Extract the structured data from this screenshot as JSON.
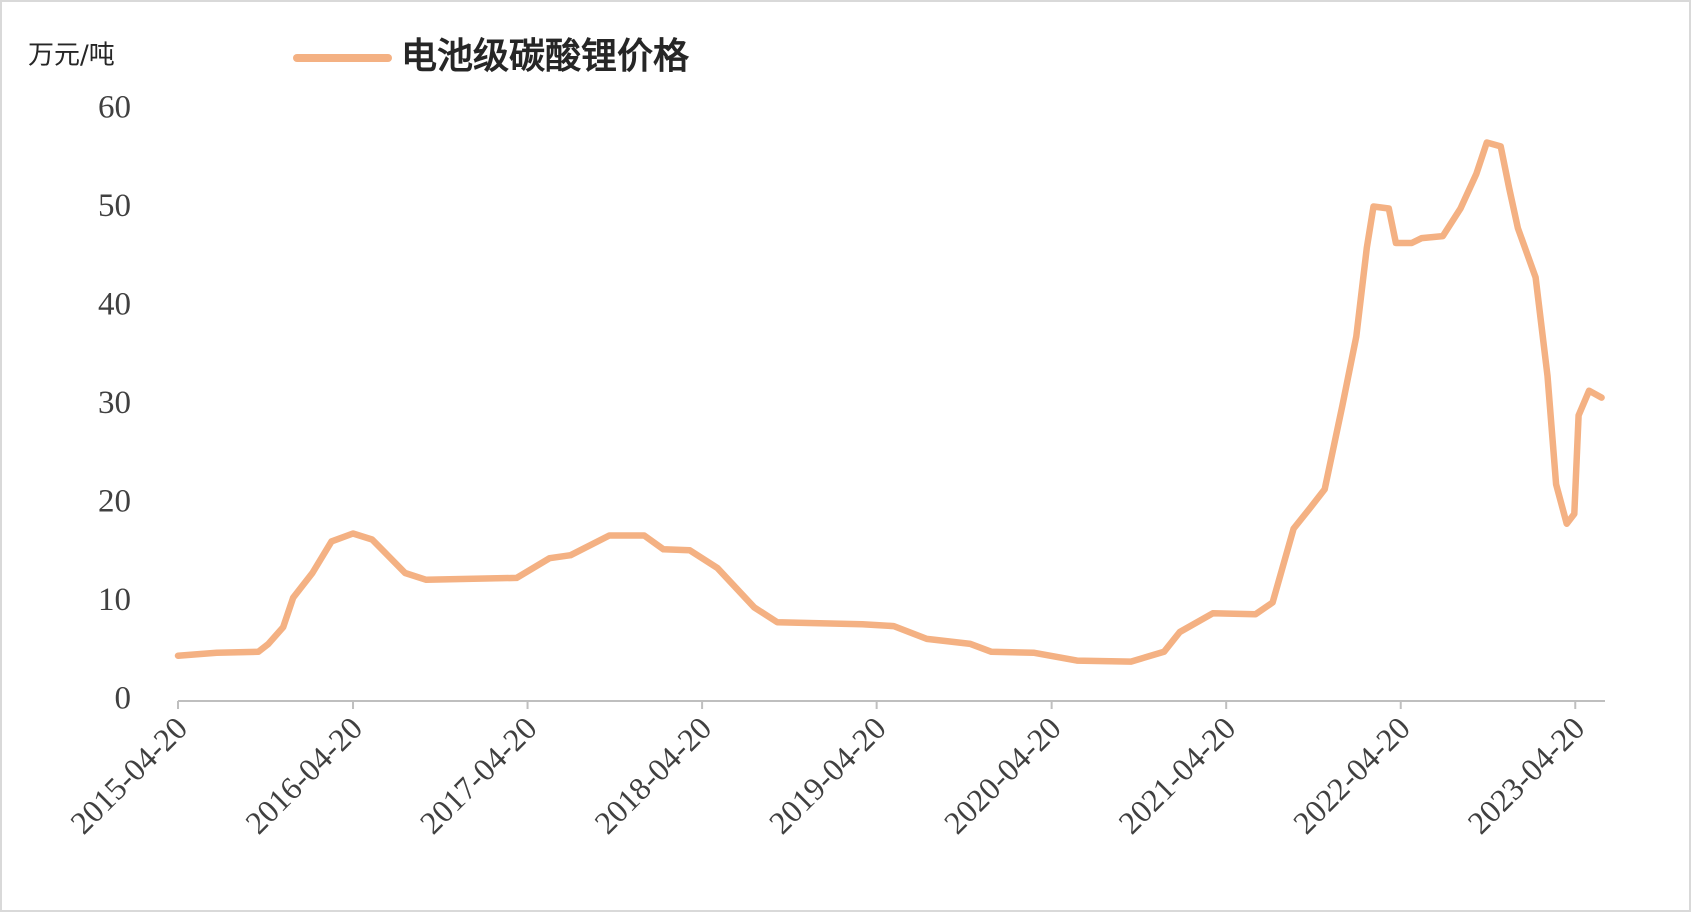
{
  "chart_data": {
    "type": "line",
    "y_label": "万元/吨",
    "x": [
      "2015-04-20",
      "2015-07-10",
      "2015-10-05",
      "2015-10-26",
      "2015-11-26",
      "2015-12-17",
      "2016-01-26",
      "2016-03-06",
      "2016-04-20",
      "2016-05-30",
      "2016-08-07",
      "2016-09-20",
      "2017-03-28",
      "2017-06-05",
      "2017-07-19",
      "2017-10-08",
      "2017-12-20",
      "2018-01-29",
      "2018-03-25",
      "2018-05-22",
      "2018-08-07",
      "2018-09-24",
      "2019-03-21",
      "2019-05-26",
      "2019-08-03",
      "2019-11-02",
      "2019-12-16",
      "2020-03-13",
      "2020-06-12",
      "2020-10-03",
      "2020-12-11",
      "2021-01-13",
      "2021-03-23",
      "2021-06-20",
      "2021-07-26",
      "2021-09-08",
      "2021-10-11",
      "2021-11-12",
      "2021-12-19",
      "2022-01-17",
      "2022-02-08",
      "2022-02-22",
      "2022-03-26",
      "2022-04-10",
      "2022-05-13",
      "2022-06-03",
      "2022-07-17",
      "2022-08-23",
      "2022-09-25",
      "2022-10-17",
      "2022-11-15",
      "2022-12-03",
      "2022-12-21",
      "2023-01-27",
      "2023-02-21",
      "2023-03-11",
      "2023-04-02",
      "2023-04-18",
      "2023-04-27",
      "2023-05-19",
      "2023-06-14"
    ],
    "series": [
      {
        "name": "电池级碳酸锂价格",
        "color": "#f4b183",
        "values": [
          4.6,
          4.9,
          5.0,
          5.8,
          7.5,
          10.5,
          13,
          16.2,
          17.0,
          16.4,
          13,
          12.3,
          12.5,
          14.5,
          14.8,
          16.8,
          16.8,
          15.4,
          15.3,
          13.5,
          9.5,
          8.0,
          7.8,
          7.6,
          6.3,
          5.8,
          5.0,
          4.9,
          4.1,
          4.0,
          5.0,
          7.0,
          8.9,
          8.8,
          10,
          17.5,
          19.5,
          21.5,
          30,
          37,
          46,
          50.2,
          50,
          46.5,
          46.5,
          47,
          47.2,
          50,
          53.5,
          56.7,
          56.3,
          52,
          48,
          43,
          33,
          22,
          18,
          19,
          29,
          31.5,
          30.8
        ]
      }
    ],
    "xlim": [
      "2015-04-20",
      "2023-06-17"
    ],
    "xticks": [
      "2015-04-20",
      "2016-04-20",
      "2017-04-20",
      "2018-04-20",
      "2019-04-20",
      "2020-04-20",
      "2021-04-20",
      "2022-04-20",
      "2023-04-20"
    ],
    "ylim": [
      0,
      60
    ],
    "yticks": [
      0,
      10,
      20,
      30,
      40,
      50,
      60
    ],
    "grid": false
  }
}
